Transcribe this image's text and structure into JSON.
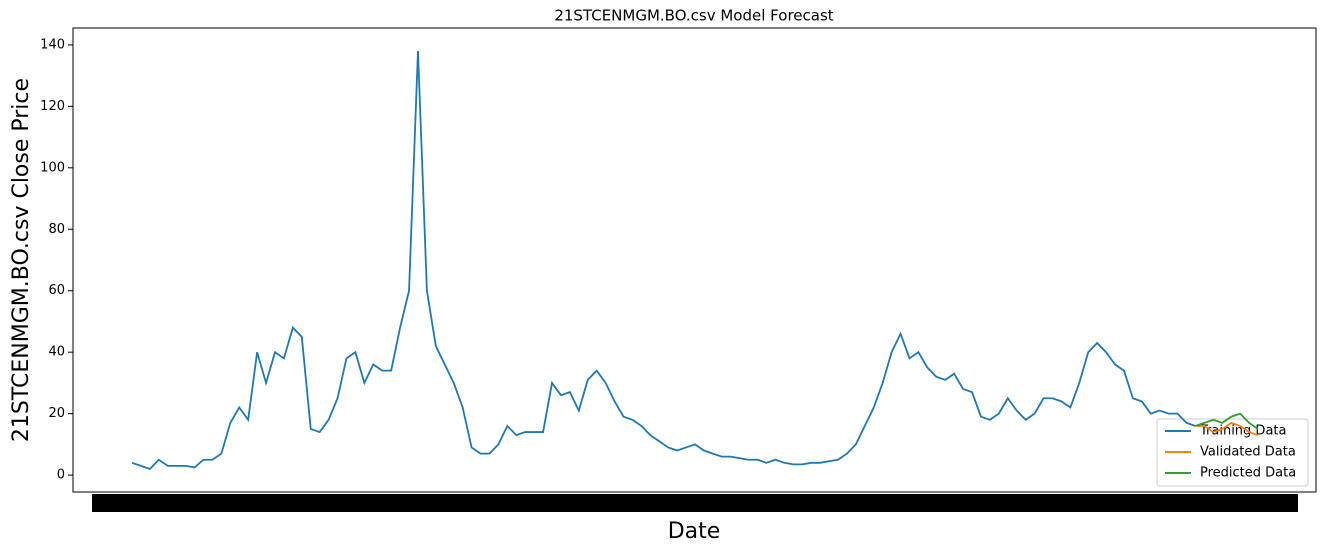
{
  "chart_data": {
    "type": "line",
    "title": "21STCENMGM.BO.csv Model Forecast",
    "xlabel": "Date",
    "ylabel": "21STCENMGM.BO.csv Close Price",
    "ylim": [
      -5.5,
      145.5
    ],
    "yticks": [
      0,
      20,
      40,
      60,
      80,
      100,
      120,
      140
    ],
    "legend": "lower right",
    "series": [
      {
        "name": "Training Data",
        "color": "#1f77b4",
        "values": [
          4,
          3,
          2,
          5,
          3,
          3,
          3,
          2.5,
          5,
          5,
          7,
          17,
          22,
          18,
          40,
          30,
          40,
          38,
          48,
          45,
          15,
          14,
          18,
          25,
          38,
          40,
          30,
          36,
          34,
          34,
          48,
          60,
          138,
          60,
          42,
          36,
          30,
          22,
          9,
          7,
          7,
          10,
          16,
          13,
          14,
          14,
          14,
          30,
          26,
          27,
          21,
          31,
          34,
          30,
          24,
          19,
          18,
          16,
          13,
          11,
          9,
          8,
          9,
          10,
          8,
          7,
          6,
          6,
          5.5,
          5,
          5,
          4,
          5,
          4,
          3.5,
          3.5,
          4,
          4,
          4.5,
          5,
          7,
          10,
          16,
          22,
          30,
          40,
          46,
          38,
          40,
          35,
          32,
          31,
          33,
          28,
          27,
          19,
          18,
          20,
          25,
          21,
          18,
          20,
          25,
          25,
          24,
          22,
          30,
          40,
          43,
          40,
          36,
          34,
          25,
          24,
          20,
          21,
          20,
          20,
          17,
          16,
          null,
          null,
          null,
          null,
          null,
          null,
          null
        ]
      },
      {
        "name": "Validated Data",
        "color": "#ff7f0e",
        "values": [
          null,
          null,
          null,
          null,
          null,
          null,
          null,
          null,
          null,
          null,
          null,
          null,
          null,
          null,
          null,
          null,
          null,
          null,
          null,
          null,
          null,
          null,
          null,
          null,
          null,
          null,
          null,
          null,
          null,
          null,
          null,
          null,
          null,
          null,
          null,
          null,
          null,
          null,
          null,
          null,
          null,
          null,
          null,
          null,
          null,
          null,
          null,
          null,
          null,
          null,
          null,
          null,
          null,
          null,
          null,
          null,
          null,
          null,
          null,
          null,
          null,
          null,
          null,
          null,
          null,
          null,
          null,
          null,
          null,
          null,
          null,
          null,
          null,
          null,
          null,
          null,
          null,
          null,
          null,
          null,
          null,
          null,
          null,
          null,
          null,
          null,
          null,
          null,
          null,
          null,
          null,
          null,
          null,
          null,
          null,
          null,
          null,
          null,
          null,
          null,
          null,
          null,
          null,
          null,
          null,
          null,
          null,
          null,
          null,
          null,
          null,
          null,
          null,
          null,
          null,
          null,
          null,
          null,
          null,
          16,
          16,
          14,
          15,
          17,
          16,
          14,
          13
        ]
      },
      {
        "name": "Predicted Data",
        "color": "#2ca02c",
        "values": [
          null,
          null,
          null,
          null,
          null,
          null,
          null,
          null,
          null,
          null,
          null,
          null,
          null,
          null,
          null,
          null,
          null,
          null,
          null,
          null,
          null,
          null,
          null,
          null,
          null,
          null,
          null,
          null,
          null,
          null,
          null,
          null,
          null,
          null,
          null,
          null,
          null,
          null,
          null,
          null,
          null,
          null,
          null,
          null,
          null,
          null,
          null,
          null,
          null,
          null,
          null,
          null,
          null,
          null,
          null,
          null,
          null,
          null,
          null,
          null,
          null,
          null,
          null,
          null,
          null,
          null,
          null,
          null,
          null,
          null,
          null,
          null,
          null,
          null,
          null,
          null,
          null,
          null,
          null,
          null,
          null,
          null,
          null,
          null,
          null,
          null,
          null,
          null,
          null,
          null,
          null,
          null,
          null,
          null,
          null,
          null,
          null,
          null,
          null,
          null,
          null,
          null,
          null,
          null,
          null,
          null,
          null,
          null,
          null,
          null,
          null,
          null,
          null,
          null,
          null,
          null,
          null,
          null,
          null,
          16,
          17,
          18,
          17,
          19,
          20,
          17,
          15
        ]
      }
    ]
  }
}
